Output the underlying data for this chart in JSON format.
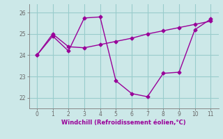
{
  "line1_x": [
    0,
    1,
    2,
    3,
    4,
    5,
    6,
    7,
    8,
    9,
    10,
    11
  ],
  "line1_y": [
    24.0,
    24.9,
    24.2,
    25.75,
    25.8,
    22.8,
    22.2,
    22.05,
    23.15,
    23.2,
    25.2,
    25.7
  ],
  "line2_x": [
    0,
    1,
    2,
    3,
    4,
    5,
    6,
    7,
    8,
    9,
    10,
    11
  ],
  "line2_y": [
    24.0,
    25.0,
    24.4,
    24.35,
    24.5,
    24.65,
    24.8,
    25.0,
    25.15,
    25.3,
    25.45,
    25.6
  ],
  "line_color": "#990099",
  "bg_color": "#cce8e8",
  "grid_color": "#99cccc",
  "xlabel": "Windchill (Refroidissement éolien,°C)",
  "xlabel_color": "#990099",
  "ylabel_ticks": [
    22,
    23,
    24,
    25,
    26
  ],
  "xticks": [
    0,
    1,
    2,
    3,
    4,
    5,
    6,
    7,
    8,
    9,
    10,
    11
  ],
  "ylim": [
    21.5,
    26.4
  ],
  "xlim": [
    -0.5,
    11.5
  ],
  "marker": "D",
  "marker_size": 2.5,
  "line_width": 1.0
}
